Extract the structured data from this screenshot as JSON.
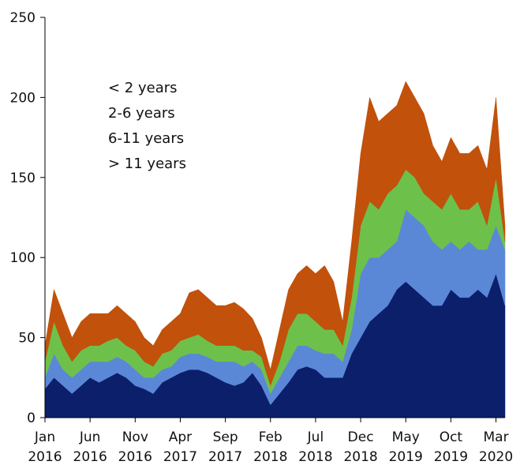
{
  "chart_data": {
    "type": "stacked_area",
    "x": [
      "2016-01",
      "2016-02",
      "2016-03",
      "2016-04",
      "2016-05",
      "2016-06",
      "2016-07",
      "2016-08",
      "2016-09",
      "2016-10",
      "2016-11",
      "2016-12",
      "2017-01",
      "2017-02",
      "2017-03",
      "2017-04",
      "2017-05",
      "2017-06",
      "2017-07",
      "2017-08",
      "2017-09",
      "2017-10",
      "2017-11",
      "2017-12",
      "2018-01",
      "2018-02",
      "2018-03",
      "2018-04",
      "2018-05",
      "2018-06",
      "2018-07",
      "2018-08",
      "2018-09",
      "2018-10",
      "2018-11",
      "2018-12",
      "2019-01",
      "2019-02",
      "2019-03",
      "2019-04",
      "2019-05",
      "2019-06",
      "2019-07",
      "2019-08",
      "2019-09",
      "2019-10",
      "2019-11",
      "2019-12",
      "2020-01",
      "2020-02",
      "2020-03",
      "2020-04"
    ],
    "xlim": [
      "2016-01",
      "2020-04"
    ],
    "xticks": [
      {
        "value": "2016-01",
        "label": [
          "Jan",
          "2016"
        ]
      },
      {
        "value": "2016-06",
        "label": [
          "Jun",
          "2016"
        ]
      },
      {
        "value": "2016-11",
        "label": [
          "Nov",
          "2016"
        ]
      },
      {
        "value": "2017-04",
        "label": [
          "Apr",
          "2017"
        ]
      },
      {
        "value": "2017-09",
        "label": [
          "Sep",
          "2017"
        ]
      },
      {
        "value": "2018-02",
        "label": [
          "Feb",
          "2018"
        ]
      },
      {
        "value": "2018-07",
        "label": [
          "Jul",
          "2018"
        ]
      },
      {
        "value": "2018-12",
        "label": [
          "Dec",
          "2018"
        ]
      },
      {
        "value": "2019-05",
        "label": [
          "May",
          "2019"
        ]
      },
      {
        "value": "2019-10",
        "label": [
          "Oct",
          "2019"
        ]
      },
      {
        "value": "2020-03",
        "label": [
          "Mar",
          "2020"
        ]
      }
    ],
    "ylim": [
      0,
      250
    ],
    "yticks": [
      0,
      50,
      100,
      150,
      200,
      250
    ],
    "series": [
      {
        "name": "< 2 years",
        "color": "#0b1f6b",
        "values": [
          18,
          25,
          20,
          15,
          20,
          25,
          22,
          25,
          28,
          25,
          20,
          18,
          15,
          22,
          25,
          28,
          30,
          30,
          28,
          25,
          22,
          20,
          22,
          28,
          20,
          8,
          15,
          22,
          30,
          32,
          30,
          25,
          25,
          25,
          40,
          50,
          60,
          65,
          70,
          80,
          85,
          80,
          75,
          70,
          70,
          80,
          75,
          75,
          80,
          75,
          90,
          70
        ]
      },
      {
        "name": "2-6 years",
        "color": "#5b87d7",
        "values": [
          7,
          15,
          10,
          10,
          10,
          10,
          13,
          10,
          10,
          10,
          10,
          7,
          10,
          8,
          7,
          10,
          10,
          10,
          10,
          10,
          13,
          15,
          10,
          7,
          10,
          7,
          10,
          13,
          15,
          13,
          12,
          15,
          15,
          10,
          15,
          40,
          40,
          35,
          35,
          30,
          45,
          45,
          45,
          40,
          35,
          30,
          30,
          35,
          25,
          30,
          30,
          35
        ]
      },
      {
        "name": "6-11 years",
        "color": "#6dc14b",
        "values": [
          10,
          20,
          15,
          10,
          12,
          10,
          10,
          13,
          12,
          10,
          12,
          10,
          7,
          10,
          10,
          10,
          10,
          12,
          10,
          10,
          10,
          10,
          10,
          7,
          8,
          5,
          10,
          20,
          20,
          20,
          18,
          15,
          15,
          10,
          20,
          30,
          35,
          30,
          35,
          35,
          25,
          25,
          20,
          25,
          25,
          30,
          25,
          20,
          30,
          15,
          30,
          5
        ]
      },
      {
        "name": "> 11 years",
        "color": "#c1510b",
        "values": [
          10,
          20,
          20,
          15,
          18,
          20,
          20,
          17,
          20,
          20,
          18,
          15,
          13,
          15,
          18,
          17,
          28,
          28,
          27,
          25,
          25,
          27,
          26,
          20,
          12,
          10,
          20,
          25,
          25,
          30,
          30,
          40,
          30,
          15,
          35,
          45,
          65,
          55,
          50,
          50,
          55,
          50,
          50,
          35,
          30,
          35,
          35,
          35,
          35,
          35,
          50,
          10
        ]
      }
    ]
  }
}
